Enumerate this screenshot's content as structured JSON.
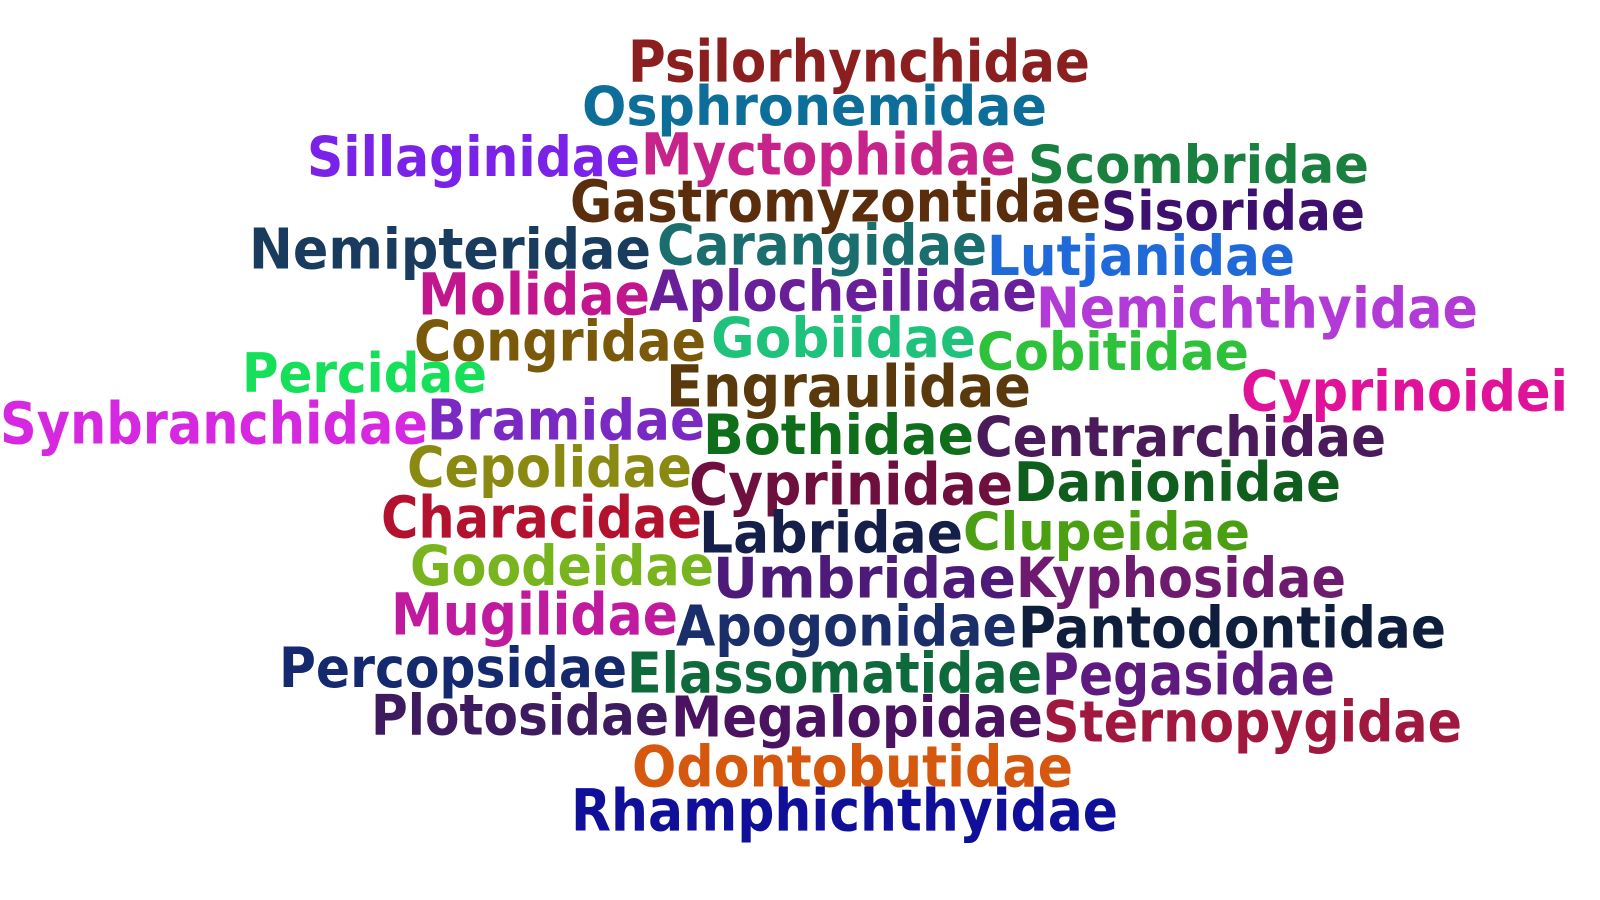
{
  "words": [
    {
      "text": "Psilorhynchidae",
      "color": "#8b1e1e"
    },
    {
      "text": "Osphronemidae",
      "color": "#0d6e99"
    },
    {
      "text": "Sillaginidae",
      "color": "#7b22e8"
    },
    {
      "text": "Myctophidae",
      "color": "#c6248a"
    },
    {
      "text": "Scombridae",
      "color": "#1a8040"
    },
    {
      "text": "Gastromyzontidae",
      "color": "#5a2d0c"
    },
    {
      "text": "Sisoridae",
      "color": "#3d0f6e"
    },
    {
      "text": "Nemipteridae",
      "color": "#183b5e"
    },
    {
      "text": "Carangidae",
      "color": "#1a6e6e"
    },
    {
      "text": "Lutjanidae",
      "color": "#1f6ad8"
    },
    {
      "text": "Molidae",
      "color": "#c2168f"
    },
    {
      "text": "Aplocheilidae",
      "color": "#6a1f9a"
    },
    {
      "text": "Nemichthyidae",
      "color": "#b23ad6"
    },
    {
      "text": "Congridae",
      "color": "#7a5a0a"
    },
    {
      "text": "Gobiidae",
      "color": "#1fc27a"
    },
    {
      "text": "Cobitidae",
      "color": "#2ec23a"
    },
    {
      "text": "Percidae",
      "color": "#16e05a"
    },
    {
      "text": "Engraulidae",
      "color": "#5a3a0c"
    },
    {
      "text": "Cyprinoidei",
      "color": "#e0129a"
    },
    {
      "text": "Synbranchidae",
      "color": "#d628e0"
    },
    {
      "text": "Bramidae",
      "color": "#7a2ac2"
    },
    {
      "text": "Bothidae",
      "color": "#0f6e1a"
    },
    {
      "text": "Centrarchidae",
      "color": "#4a1a5a"
    },
    {
      "text": "Cepolidae",
      "color": "#8a8a12"
    },
    {
      "text": "Cyprinidae",
      "color": "#6e0f3e"
    },
    {
      "text": "Danionidae",
      "color": "#0f5e1e"
    },
    {
      "text": "Characidae",
      "color": "#b2122e"
    },
    {
      "text": "Labridae",
      "color": "#141f4a"
    },
    {
      "text": "Clupeidae",
      "color": "#4aa012"
    },
    {
      "text": "Goodeidae",
      "color": "#78b41e"
    },
    {
      "text": "Umbridae",
      "color": "#4e1a7a"
    },
    {
      "text": "Kyphosidae",
      "color": "#6e1a6e"
    },
    {
      "text": "Mugilidae",
      "color": "#c01a9e"
    },
    {
      "text": "Apogonidae",
      "color": "#1a2e6a"
    },
    {
      "text": "Pantodontidae",
      "color": "#101e3e"
    },
    {
      "text": "Percopsidae",
      "color": "#15296e"
    },
    {
      "text": "Elassomatidae",
      "color": "#0e6a3a"
    },
    {
      "text": "Pegasidae",
      "color": "#5e1a7e"
    },
    {
      "text": "Plotosidae",
      "color": "#3e1a5e"
    },
    {
      "text": "Megalopidae",
      "color": "#4a1260"
    },
    {
      "text": "Sternopygidae",
      "color": "#a0183e"
    },
    {
      "text": "Odontobutidae",
      "color": "#d6580e"
    },
    {
      "text": "Rhamphichthyidae",
      "color": "#0f0f9a"
    }
  ]
}
